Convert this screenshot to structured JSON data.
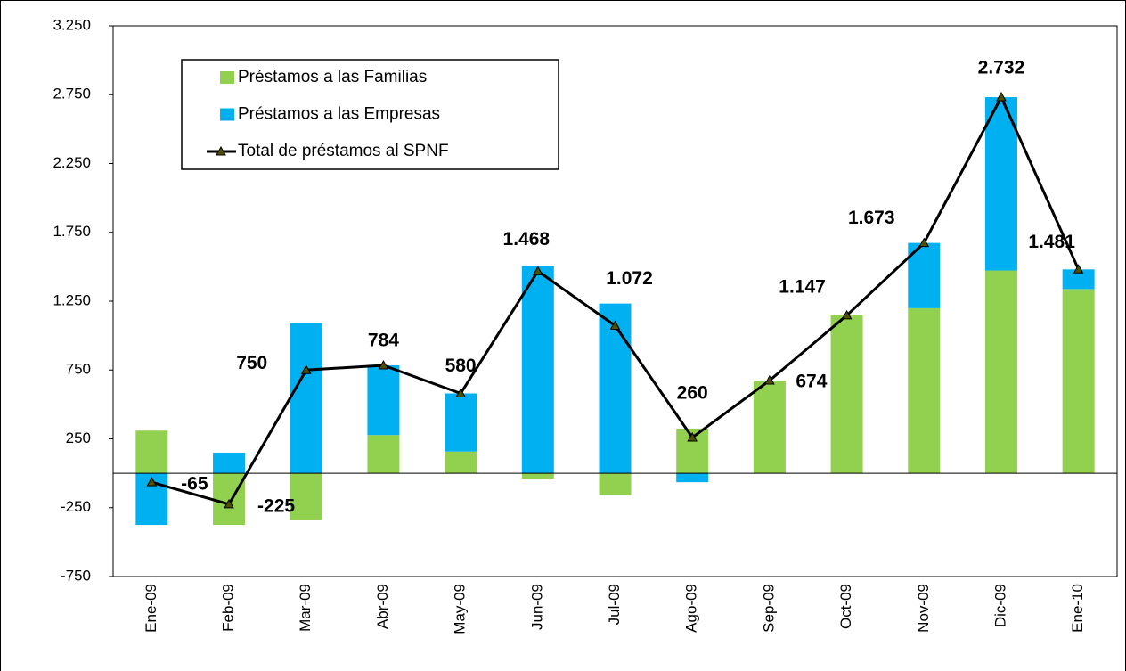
{
  "chart_data": {
    "type": "bar-line",
    "categories": [
      "Ene-09",
      "Feb-09",
      "Mar-09",
      "Abr-09",
      "May-09",
      "Jun-09",
      "Jul-09",
      "Ago-09",
      "Sep-09",
      "Oct-09",
      "Nov-09",
      "Dic-09",
      "Ene-10"
    ],
    "series": [
      {
        "name": "Préstamos a las Familias",
        "type": "bar",
        "color": "#92d050",
        "values": [
          310,
          -375,
          -340,
          278,
          158,
          -38,
          -161,
          325,
          674,
          1147,
          1199,
          1473,
          1338
        ]
      },
      {
        "name": "Préstamos a las Empresas",
        "type": "bar",
        "color": "#00b0f0",
        "values": [
          -375,
          150,
          1090,
          506,
          422,
          1506,
          1233,
          -65,
          0,
          0,
          474,
          1259,
          143
        ]
      },
      {
        "name": "Total de préstamos al SPNF",
        "type": "line",
        "color": "#000000",
        "marker_color": "#4f4f00",
        "values": [
          -65,
          -225,
          750,
          784,
          580,
          1468,
          1072,
          260,
          674,
          1147,
          1673,
          2732,
          1481
        ],
        "value_labels": [
          "-65",
          "-225",
          "750",
          "784",
          "580",
          "1.468",
          "1.072",
          "260",
          "674",
          "1.147",
          "1.673",
          "2.732",
          "1.481"
        ]
      }
    ],
    "ylim": [
      -750,
      3250
    ],
    "yticks": [
      -750,
      -250,
      250,
      750,
      {
        "value": 1250,
        "label": "1.250"
      },
      {
        "value": 1750,
        "label": "1.750"
      },
      {
        "value": 2250,
        "label": "2.250"
      },
      {
        "value": 2750,
        "label": "2.750"
      },
      {
        "value": 3250,
        "label": "3.250"
      }
    ],
    "stacked": true,
    "grid": false,
    "legend": "upper-left"
  }
}
